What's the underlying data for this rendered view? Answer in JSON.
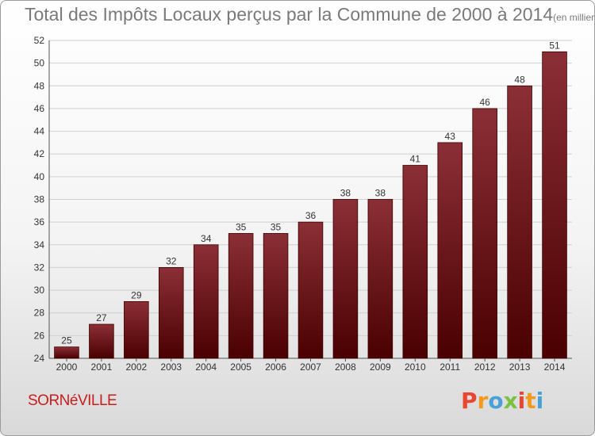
{
  "header": {
    "title": "Total des Impôts Locaux perçus par la Commune de 2000 à 2014",
    "unit": "(en milliers d'€)"
  },
  "footer": {
    "commune": "SORNéVILLE",
    "logo_letters": [
      "P",
      "r",
      "o",
      "x",
      "i",
      "t",
      "i"
    ],
    "logo_colors": [
      "#e8462f",
      "#f39a1e",
      "#4aa0d8",
      "#7cc242",
      "#e8462f",
      "#f39a1e",
      "#4aa0d8"
    ]
  },
  "colors": {
    "bar_top": "#8b2f36",
    "bar_bottom": "#4a0000",
    "grid": "#d0d0d0"
  },
  "chart_data": {
    "type": "bar",
    "title": "Total des Impôts Locaux perçus par la Commune de 2000 à 2014",
    "xlabel": "",
    "ylabel": "",
    "categories": [
      "2000",
      "2001",
      "2002",
      "2003",
      "2004",
      "2005",
      "2006",
      "2007",
      "2008",
      "2009",
      "2010",
      "2011",
      "2012",
      "2013",
      "2014"
    ],
    "values": [
      25,
      27,
      29,
      32,
      34,
      35,
      35,
      36,
      38,
      38,
      41,
      43,
      46,
      48,
      51
    ],
    "ylim": [
      24,
      52
    ],
    "yticks": [
      24,
      26,
      28,
      30,
      32,
      34,
      36,
      38,
      40,
      42,
      44,
      46,
      48,
      50,
      52
    ],
    "grid": true
  }
}
